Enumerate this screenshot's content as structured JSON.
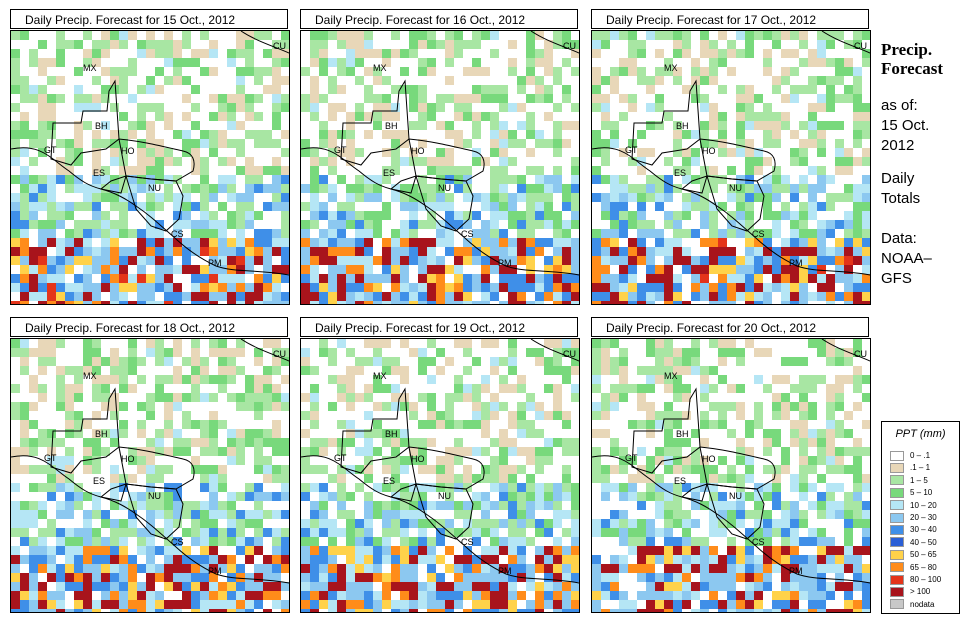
{
  "panels": [
    {
      "title": "Daily Precip. Forecast for  15 Oct., 2012",
      "seed": 11,
      "wet": 0.95
    },
    {
      "title": "Daily Precip. Forecast for  16 Oct., 2012",
      "seed": 23,
      "wet": 0.85
    },
    {
      "title": "Daily Precip. Forecast for  17 Oct., 2012",
      "seed": 37,
      "wet": 0.9
    },
    {
      "title": "Daily Precip. Forecast for  18 Oct., 2012",
      "seed": 41,
      "wet": 0.8
    },
    {
      "title": "Daily Precip. Forecast for  19 Oct., 2012",
      "seed": 53,
      "wet": 0.75
    },
    {
      "title": "Daily Precip. Forecast for  20 Oct., 2012",
      "seed": 67,
      "wet": 0.7
    }
  ],
  "map_labels": [
    "MX",
    "CU",
    "BH",
    "GT",
    "HO",
    "ES",
    "NU",
    "CS",
    "PM"
  ],
  "side": {
    "title_line1": "Precip.",
    "title_line2": "Forecast",
    "asof": "as of:",
    "date_line1": "15 Oct.",
    "date_line2": "2012",
    "daily_line1": "Daily",
    "daily_line2": "Totals",
    "data_line1": "Data:",
    "data_line2": "NOAA–",
    "data_line3": "GFS"
  },
  "legend": {
    "title": "PPT (mm)",
    "items": [
      {
        "label": "0 – .1",
        "color": "#ffffff"
      },
      {
        "label": ".1 – 1",
        "color": "#e8d7b8"
      },
      {
        "label": "1 – 5",
        "color": "#a8e6a3"
      },
      {
        "label": "5 – 10",
        "color": "#78d97c"
      },
      {
        "label": "10 – 20",
        "color": "#b5e6f5"
      },
      {
        "label": "20 – 30",
        "color": "#8cc8f0"
      },
      {
        "label": "30 – 40",
        "color": "#3f8fe8"
      },
      {
        "label": "40 – 50",
        "color": "#2b5fd6"
      },
      {
        "label": "50 – 65",
        "color": "#ffd24a"
      },
      {
        "label": "65 – 80",
        "color": "#ff8c1a"
      },
      {
        "label": "80 – 100",
        "color": "#e4341a"
      },
      {
        "label": "> 100",
        "color": "#a8141c"
      },
      {
        "label": "nodata",
        "color": "#c8c8c8"
      }
    ]
  }
}
